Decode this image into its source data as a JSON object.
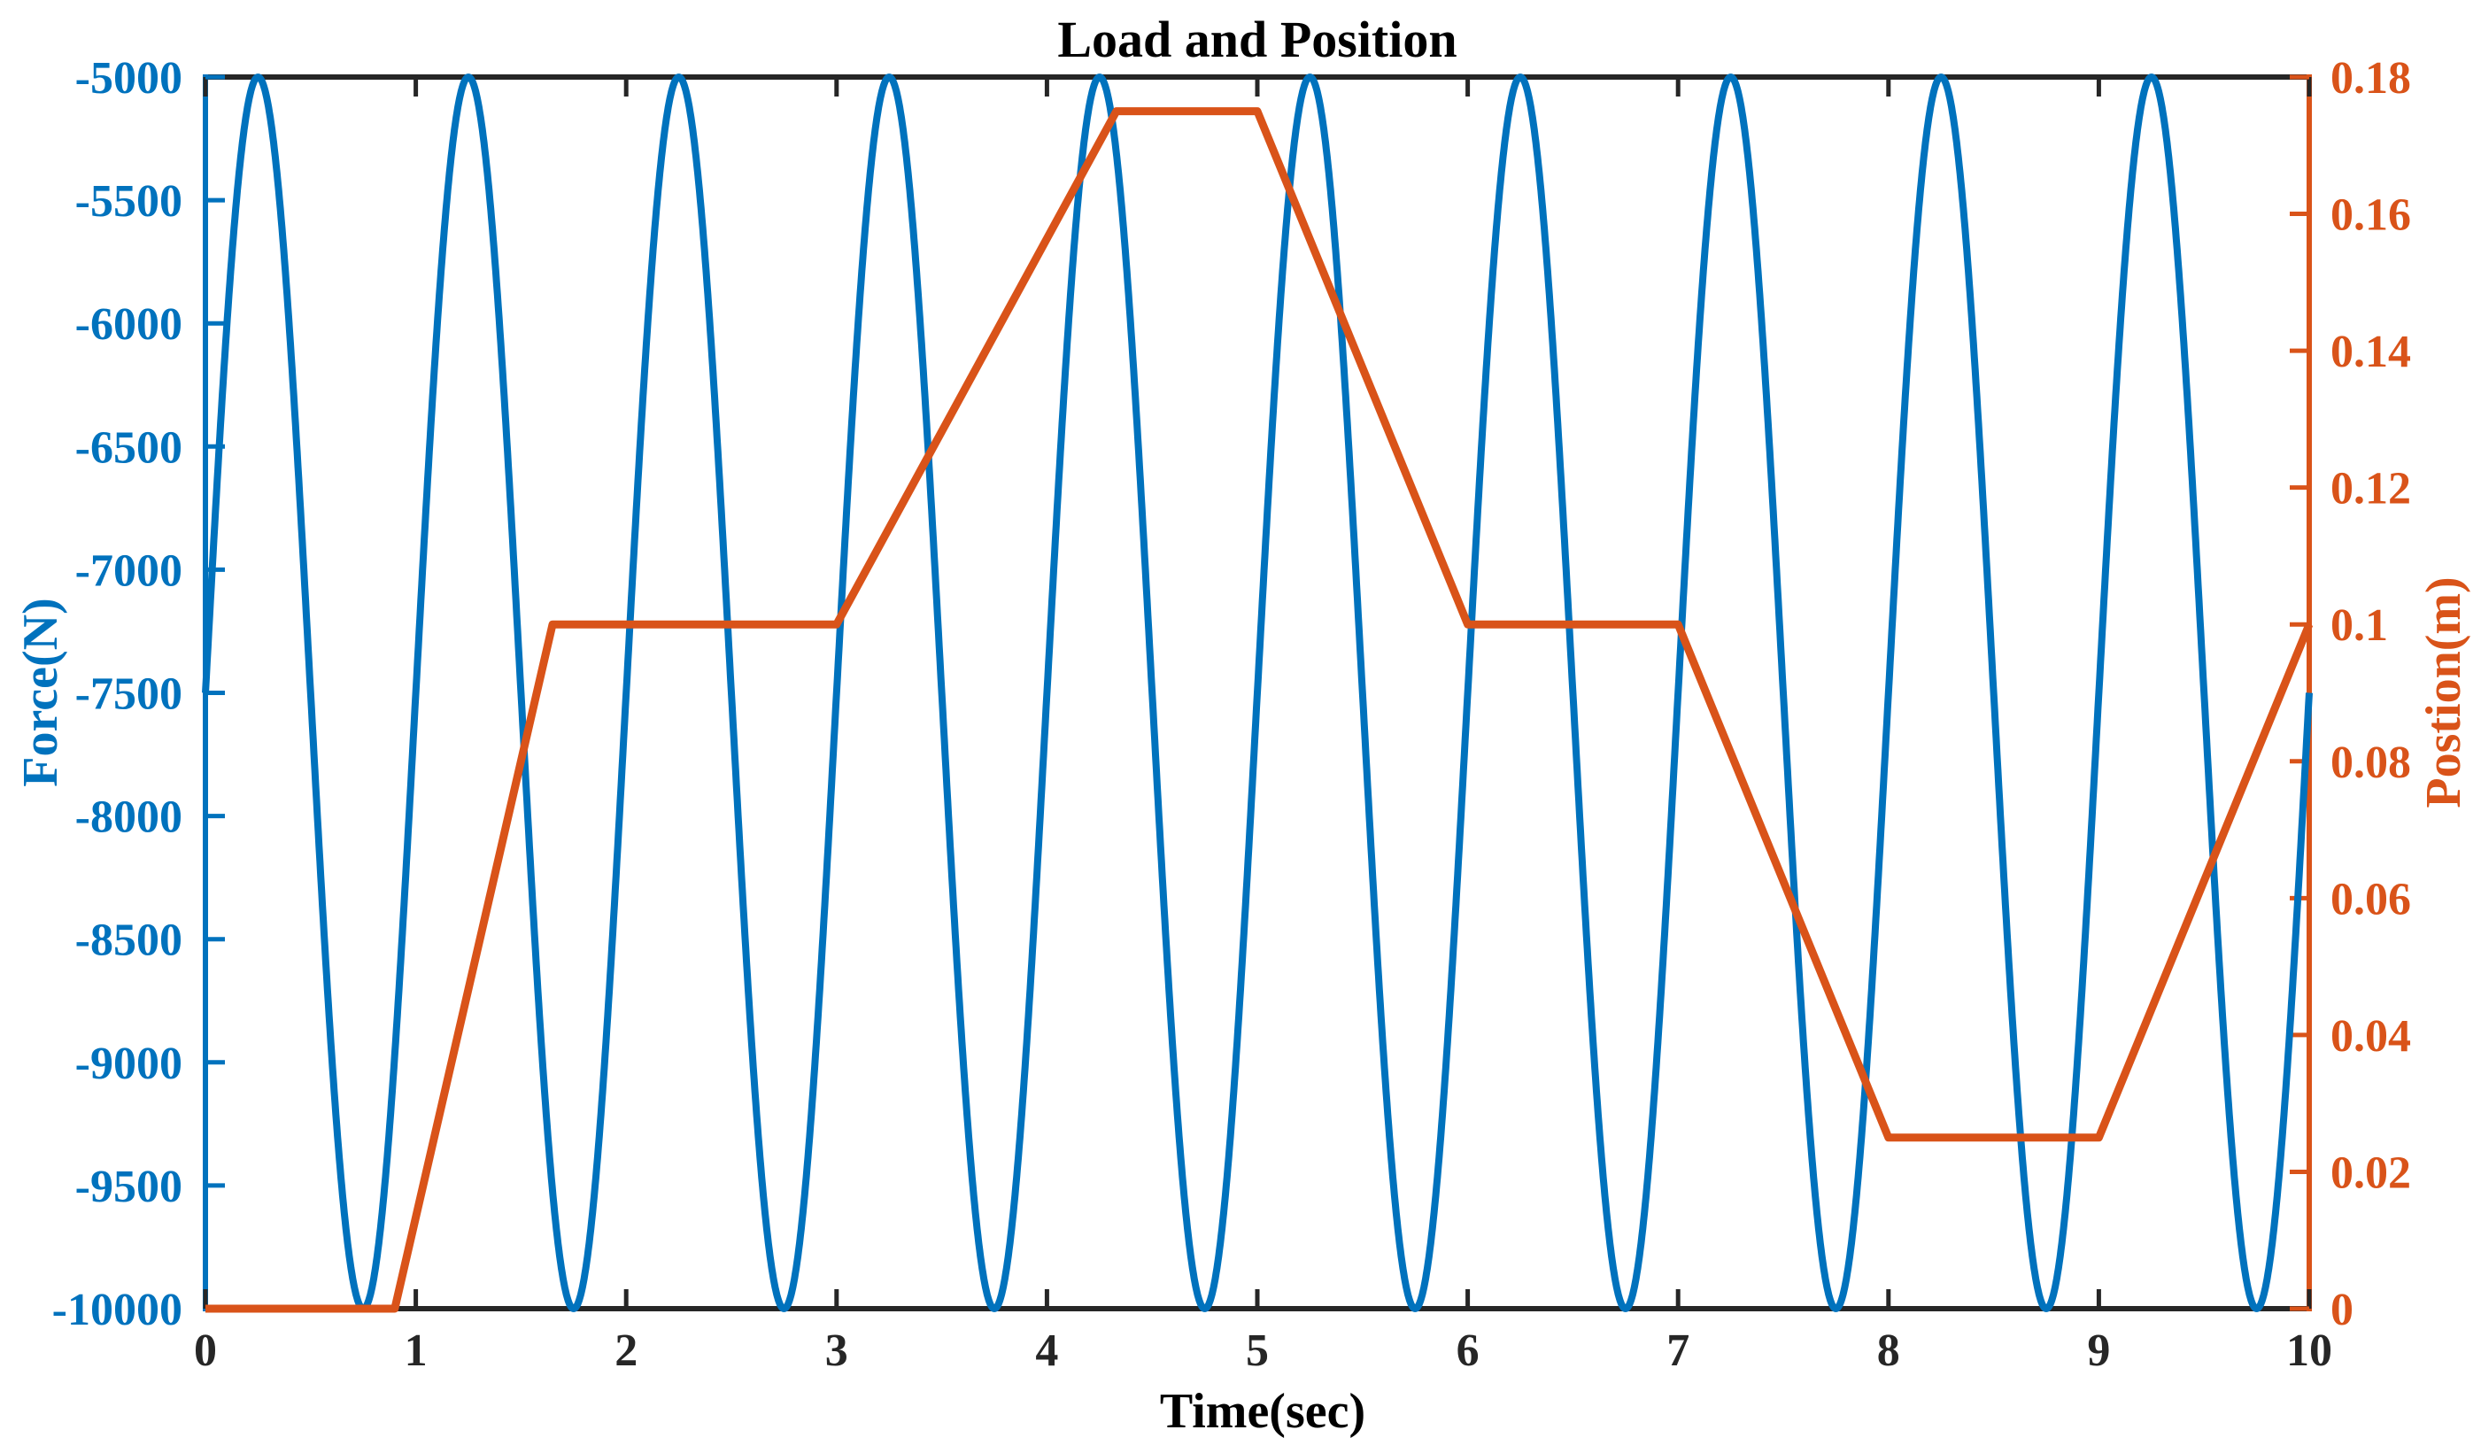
{
  "figure": {
    "title": "Load and Position",
    "background": "#ffffff",
    "colors": {
      "force_blue": "#0072BD",
      "position_orange": "#D95319",
      "axis_black": "#262626",
      "title_black": "#000000"
    }
  },
  "chart_data": {
    "type": "line",
    "title": "Load and Position",
    "xlabel": "Time(sec)",
    "grid": false,
    "legend": "none",
    "x_axis": {
      "min": 0,
      "max": 10,
      "tick_values": [
        0,
        1,
        2,
        3,
        4,
        5,
        6,
        7,
        8,
        9,
        10
      ],
      "tick_labels": [
        "0",
        "1",
        "2",
        "3",
        "4",
        "5",
        "6",
        "7",
        "8",
        "9",
        "10"
      ],
      "color": "#262626"
    },
    "left_axis": {
      "label": "Force(N)",
      "min": -10000,
      "max": -5000,
      "tick_values": [
        -5000,
        -5500,
        -6000,
        -6500,
        -7000,
        -7500,
        -8000,
        -8500,
        -9000,
        -9500,
        -10000
      ],
      "tick_labels": [
        "-5000",
        "-5500",
        "-6000",
        "-6500",
        "-7000",
        "-7500",
        "-8000",
        "-8500",
        "-9000",
        "-9500",
        "-10000"
      ],
      "color": "#0072BD"
    },
    "right_axis": {
      "label": "Postion(m)",
      "min": 0,
      "max": 0.18,
      "tick_values": [
        0,
        0.02,
        0.04,
        0.06,
        0.08,
        0.1,
        0.12,
        0.14,
        0.16,
        0.18
      ],
      "tick_labels": [
        "0",
        "0.02",
        "0.04",
        "0.06",
        "0.08",
        "0.1",
        "0.12",
        "0.14",
        "0.16",
        "0.18"
      ],
      "color": "#D95319"
    },
    "series": [
      {
        "name": "Force",
        "yaxis": "left",
        "color": "#0072BD",
        "waveform": "sine",
        "mean": -7500,
        "amplitude": 2500,
        "period_sec": 1,
        "t_start": 0,
        "t_end": 10,
        "peak_value": -5000,
        "trough_value": -10000,
        "first_peak_at_sec": 0.25,
        "cycles": 10
      },
      {
        "name": "Position",
        "yaxis": "right",
        "color": "#D95319",
        "waveform": "piecewise_linear",
        "points": [
          [
            0,
            0
          ],
          [
            0.9,
            0
          ],
          [
            1.65,
            0.1
          ],
          [
            3.0,
            0.1
          ],
          [
            4.33,
            0.175
          ],
          [
            5.0,
            0.175
          ],
          [
            6.0,
            0.1
          ],
          [
            7.0,
            0.1
          ],
          [
            8.0,
            0.025
          ],
          [
            9.0,
            0.025
          ],
          [
            10.0,
            0.1
          ]
        ]
      }
    ]
  }
}
